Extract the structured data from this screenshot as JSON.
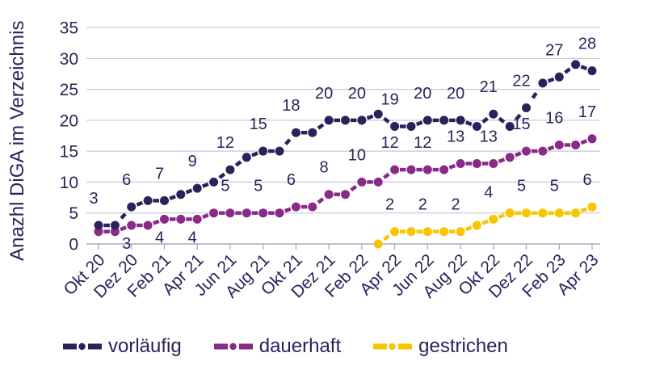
{
  "chart_data": {
    "type": "line",
    "ylabel": "Anazhl DiGA im Verzeichnis",
    "ylim": [
      0,
      35
    ],
    "yticks": [
      0,
      5,
      10,
      15,
      20,
      25,
      30,
      35
    ],
    "grid": "horizontal",
    "legend_position": "bottom",
    "n_points": 31,
    "x_unit": "month (Okt 20 bis Apr 23, Datenpunkte monatlich, Beschriftung alle 2 Monate)",
    "x_tick_labels": [
      "Okt 20",
      "Dez 20",
      "Feb 21",
      "Apr 21",
      "Jun 21",
      "Aug 21",
      "Okt 21",
      "Dez 21",
      "Feb 22",
      "Apr 22",
      "Jun 22",
      "Aug 22",
      "Okt 22",
      "Dez 22",
      "Feb 23",
      "Apr 23"
    ],
    "series": [
      {
        "name": "vorläufig",
        "key": "vorlaeufig",
        "color": "#29235C",
        "values": [
          3,
          3,
          6,
          7,
          7,
          8,
          9,
          10,
          12,
          14,
          15,
          15,
          18,
          18,
          20,
          20,
          20,
          21,
          19,
          19,
          20,
          20,
          20,
          19,
          21,
          19,
          22,
          26,
          27,
          29,
          28
        ],
        "data_labels": [
          {
            "i": 0,
            "text": "3",
            "side": "above"
          },
          {
            "i": 2,
            "text": "6",
            "side": "above"
          },
          {
            "i": 4,
            "text": "7",
            "side": "above"
          },
          {
            "i": 6,
            "text": "9",
            "side": "above"
          },
          {
            "i": 8,
            "text": "12",
            "side": "above"
          },
          {
            "i": 10,
            "text": "15",
            "side": "above"
          },
          {
            "i": 12,
            "text": "18",
            "side": "above"
          },
          {
            "i": 14,
            "text": "20",
            "side": "above"
          },
          {
            "i": 16,
            "text": "20",
            "side": "above"
          },
          {
            "i": 18,
            "text": "19",
            "side": "above"
          },
          {
            "i": 20,
            "text": "20",
            "side": "above"
          },
          {
            "i": 22,
            "text": "20",
            "side": "above"
          },
          {
            "i": 24,
            "text": "21",
            "side": "above"
          },
          {
            "i": 26,
            "text": "22",
            "side": "above"
          },
          {
            "i": 28,
            "text": "27",
            "side": "above"
          },
          {
            "i": 30,
            "text": "28",
            "side": "above"
          }
        ]
      },
      {
        "name": "dauerhaft",
        "key": "dauerhaft",
        "color": "#8A2A87",
        "values": [
          2,
          2,
          3,
          3,
          4,
          4,
          4,
          5,
          5,
          5,
          5,
          5,
          6,
          6,
          8,
          8,
          10,
          10,
          12,
          12,
          12,
          12,
          13,
          13,
          13,
          14,
          15,
          15,
          16,
          16,
          17
        ],
        "data_labels": [
          {
            "i": 2,
            "text": "3",
            "side": "below"
          },
          {
            "i": 4,
            "text": "4",
            "side": "below"
          },
          {
            "i": 6,
            "text": "4",
            "side": "below"
          },
          {
            "i": 8,
            "text": "5",
            "side": "above"
          },
          {
            "i": 10,
            "text": "5",
            "side": "above"
          },
          {
            "i": 12,
            "text": "6",
            "side": "above"
          },
          {
            "i": 14,
            "text": "8",
            "side": "above"
          },
          {
            "i": 16,
            "text": "10",
            "side": "above"
          },
          {
            "i": 18,
            "text": "12",
            "side": "above"
          },
          {
            "i": 20,
            "text": "12",
            "side": "above"
          },
          {
            "i": 22,
            "text": "13",
            "side": "above"
          },
          {
            "i": 24,
            "text": "13",
            "side": "above"
          },
          {
            "i": 26,
            "text": "15",
            "side": "above"
          },
          {
            "i": 28,
            "text": "16",
            "side": "above"
          },
          {
            "i": 30,
            "text": "17",
            "side": "above"
          }
        ]
      },
      {
        "name": "gestrichen",
        "key": "gestrichen",
        "color": "#F7C600",
        "values": [
          null,
          null,
          null,
          null,
          null,
          null,
          null,
          null,
          null,
          null,
          null,
          null,
          null,
          null,
          null,
          null,
          null,
          0,
          2,
          2,
          2,
          2,
          2,
          3,
          4,
          5,
          5,
          5,
          5,
          5,
          6
        ],
        "data_labels": [
          {
            "i": 18,
            "text": "2",
            "side": "above"
          },
          {
            "i": 20,
            "text": "2",
            "side": "above"
          },
          {
            "i": 22,
            "text": "2",
            "side": "above"
          },
          {
            "i": 24,
            "text": "4",
            "side": "above"
          },
          {
            "i": 26,
            "text": "5",
            "side": "above"
          },
          {
            "i": 28,
            "text": "5",
            "side": "above"
          },
          {
            "i": 30,
            "text": "6",
            "side": "above"
          }
        ]
      }
    ]
  },
  "colors": {
    "text": "#29235C",
    "grid": "#C9C5D7",
    "axis": "#ADA9C0",
    "background": "#FFFFFF"
  }
}
